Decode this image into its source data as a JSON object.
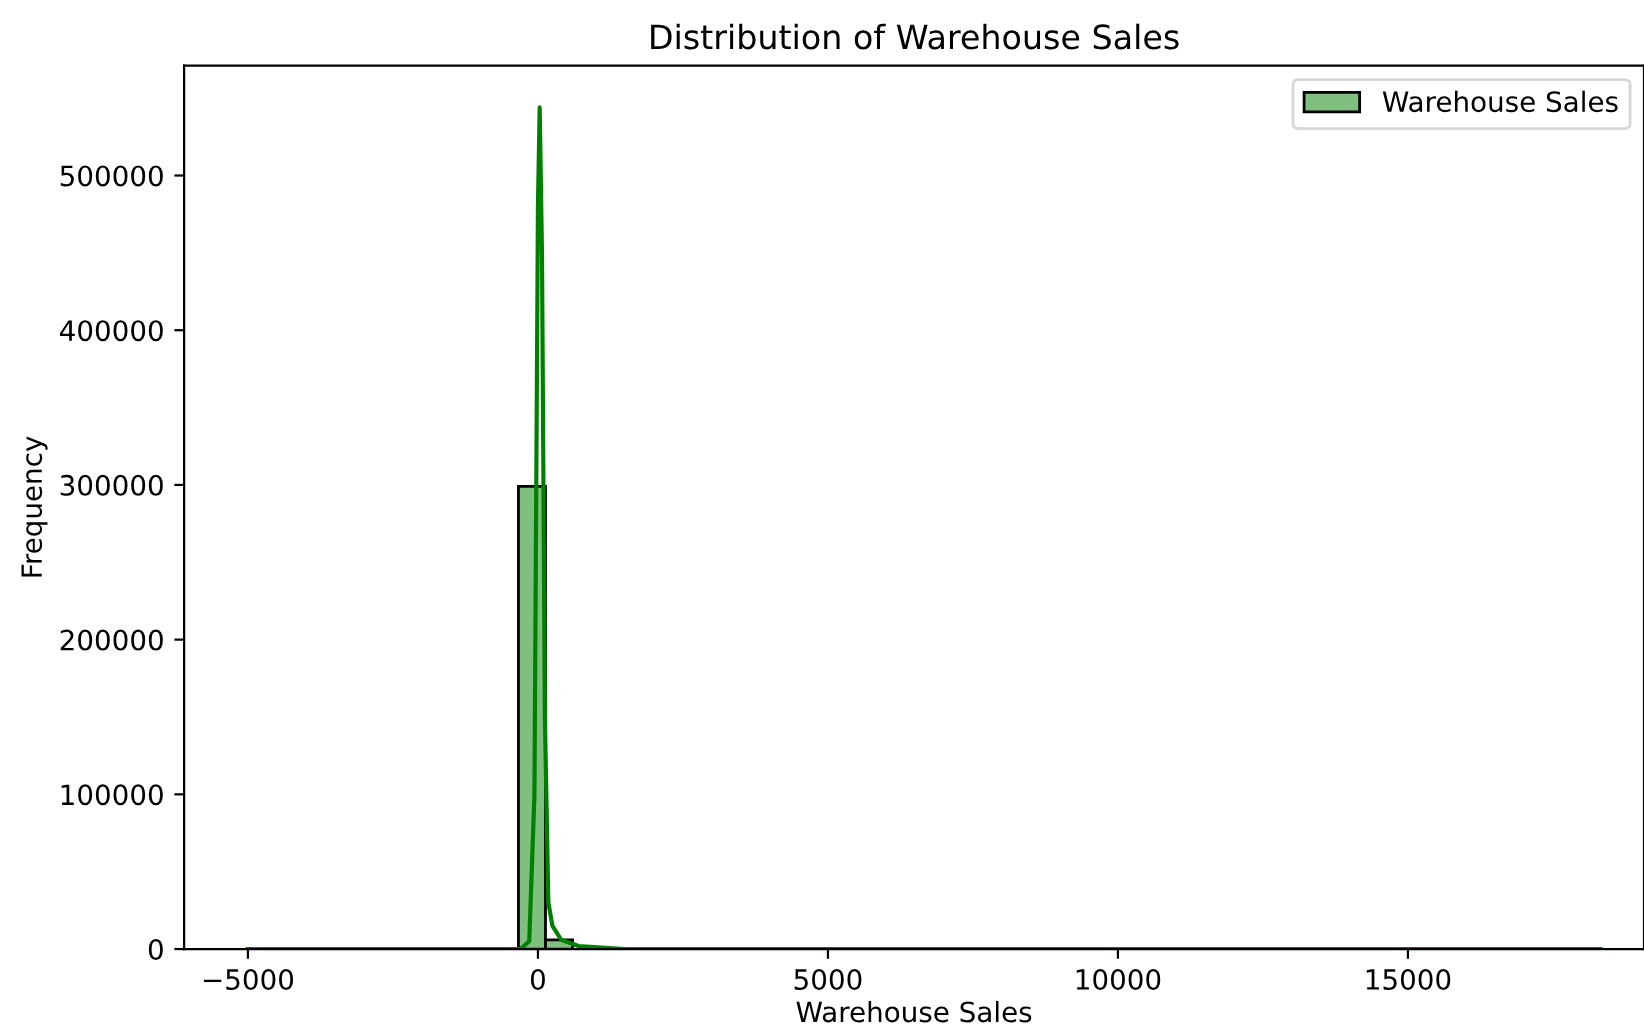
{
  "chart_data": {
    "type": "histogram",
    "title": "Distribution of Warehouse Sales",
    "xlabel": "Warehouse Sales",
    "ylabel": "Frequency",
    "bins": [
      -5000,
      -4533.6,
      -4067.2,
      -3600.8,
      -3134.4,
      -2668,
      -2201.6,
      -1735.2,
      -1268.8,
      -802.4,
      -336,
      130.4,
      596.8,
      1063.2,
      1529.6,
      1996,
      2462.4,
      2928.8,
      3395.2,
      3861.6,
      4328,
      4794.4,
      5260.8,
      5727.2,
      6193.6,
      6660,
      7126.4,
      7592.8,
      8059.2,
      8525.6,
      8992,
      9458.4,
      9924.8,
      10391.2,
      10857.6,
      11324,
      11790.4,
      12256.8,
      12723.2,
      13189.6,
      13656,
      14122.4,
      14588.8,
      15055.2,
      15521.6,
      15988,
      16454.4,
      16920.8,
      17387.2,
      17853.6,
      18320
    ],
    "series": [
      {
        "name": "Warehouse Sales",
        "color": "#7fbf7f",
        "values": [
          0,
          0,
          0,
          0,
          0,
          0,
          0,
          0,
          0,
          0,
          299000,
          6000,
          null,
          0,
          0,
          0,
          0,
          0,
          0,
          0,
          0,
          0,
          0,
          0,
          0,
          0,
          0,
          0,
          0,
          0,
          0,
          0,
          0,
          0,
          0,
          0,
          0,
          0,
          0,
          0,
          0,
          0,
          0,
          0,
          0,
          0,
          0,
          0,
          0,
          0
        ]
      },
      {
        "type": "line",
        "color": "#008000",
        "x": [
          -5000,
          -300,
          -150,
          -60,
          0,
          30,
          70,
          120,
          180,
          250,
          400,
          700,
          1500,
          3000,
          18320
        ],
        "values": [
          0,
          0,
          5000,
          100000,
          480000,
          544000,
          450000,
          150000,
          30000,
          15000,
          6000,
          2000,
          0,
          0,
          0
        ]
      }
    ],
    "xlim": [
      -6100,
      19070
    ],
    "ylim": [
      0,
      571000
    ],
    "xticks": [
      {
        "value": -5000,
        "label": "−5000"
      },
      0,
      5000,
      10000,
      15000
    ],
    "yticks": [
      0,
      100000,
      200000,
      300000,
      400000,
      500000
    ],
    "legend": "top right",
    "grid": false
  }
}
